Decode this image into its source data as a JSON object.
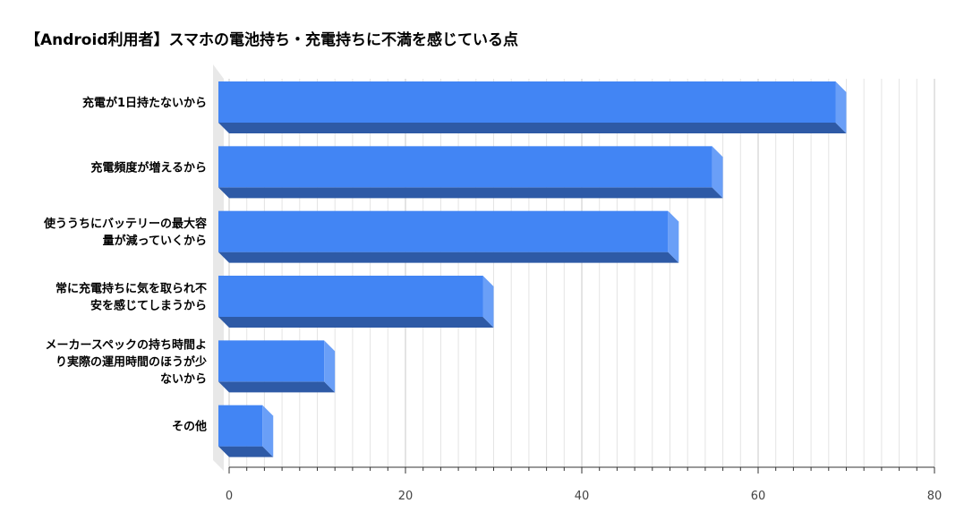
{
  "chart_data": {
    "type": "bar",
    "orientation": "horizontal",
    "title": "【Android利用者】スマホの電池持ち・充電持ちに不満を感じている点",
    "categories": [
      [
        "充電が1日持たないから"
      ],
      [
        "充電頻度が増えるから"
      ],
      [
        "使ううちにバッテリーの最大容",
        "量が減っていくから"
      ],
      [
        "常に充電持ちに気を取られ不",
        "安を感じてしまうから"
      ],
      [
        "メーカースペックの持ち時間よ",
        "り実際の運用時間のほうが少",
        "ないから"
      ],
      [
        "その他"
      ]
    ],
    "values": [
      70,
      56,
      51,
      30,
      12,
      5
    ],
    "xlim": [
      0,
      80
    ],
    "xticks": [
      "0",
      "20",
      "40",
      "60",
      "80"
    ],
    "grid": true,
    "bar_color": "#4285f4",
    "bar_side_color": "#6a9ff7",
    "bar_bottom_color": "#2e5aa6"
  }
}
